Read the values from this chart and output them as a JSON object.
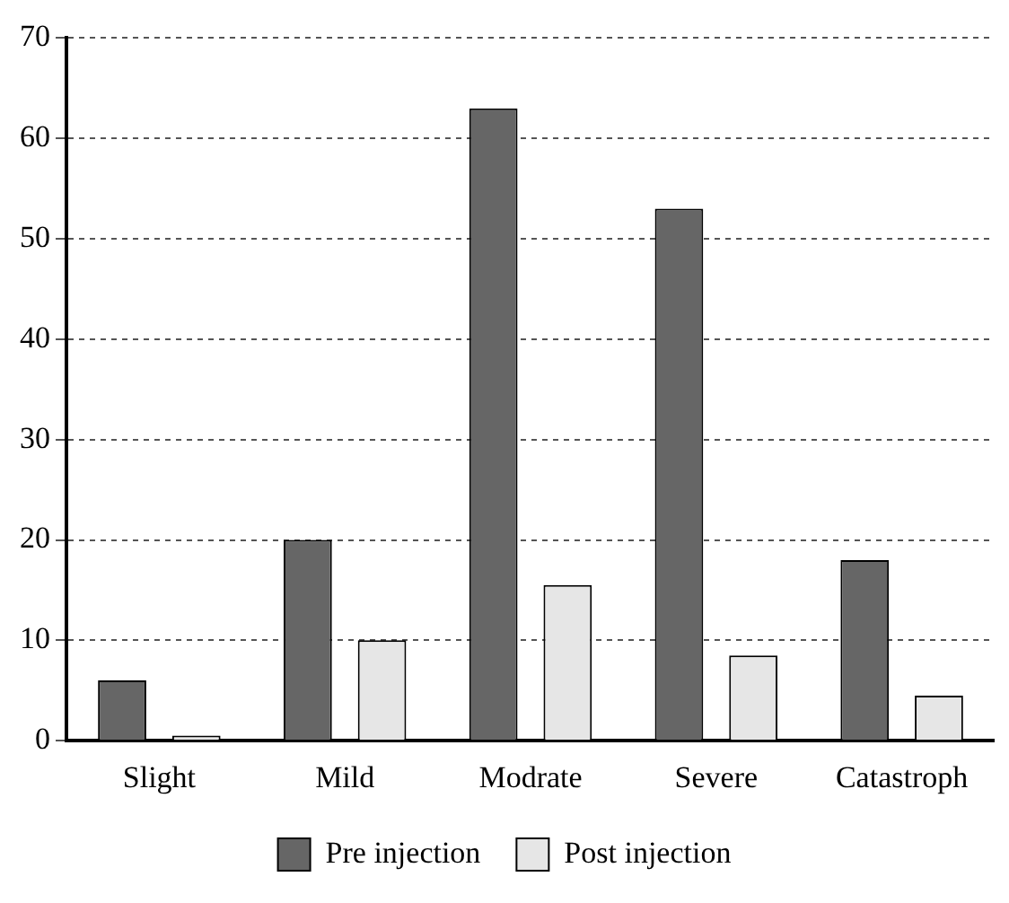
{
  "chart_data": {
    "type": "bar",
    "categories": [
      "Slight",
      "Mild",
      "Modrate",
      "Severe",
      "Catastroph"
    ],
    "series": [
      {
        "name": "Pre injection",
        "color": "#666666",
        "values": [
          6,
          20,
          63,
          53,
          18
        ]
      },
      {
        "name": "Post injection",
        "color": "#e6e6e6",
        "values": [
          0.5,
          10,
          15.5,
          8.5,
          4.5
        ]
      }
    ],
    "ylim": [
      0,
      70
    ],
    "yticks": [
      0,
      10,
      20,
      30,
      40,
      50,
      60,
      70
    ],
    "grid": "y",
    "legend": "bottom"
  }
}
